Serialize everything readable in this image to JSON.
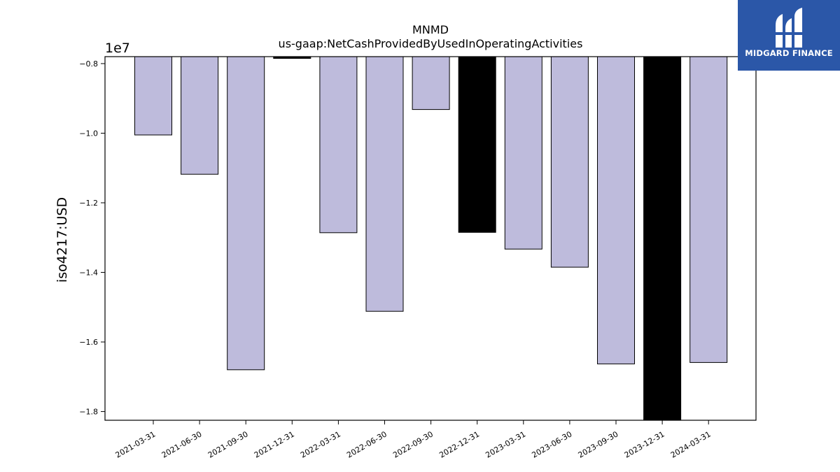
{
  "brand": {
    "name": "MIDGARD FINANCE",
    "icon": "midgard-logo-icon",
    "color": "#2b57a8"
  },
  "chart_data": {
    "type": "bar",
    "title": "MNMD",
    "subtitle": "us-gaap:NetCashProvidedByUsedInOperatingActivities",
    "xlabel": "",
    "ylabel": "iso4217:USD",
    "y_offset_label": "1e7",
    "ylim": [
      -1.825,
      -0.78
    ],
    "yticks": [
      -0.8,
      -1.0,
      -1.2,
      -1.4,
      -1.6,
      -1.8
    ],
    "ytick_labels": [
      "−0.8",
      "−1.0",
      "−1.2",
      "−1.4",
      "−1.6",
      "−1.8"
    ],
    "grid": false,
    "legend": "none",
    "bar_color": "#bebbdc",
    "highlight_color": "#000000",
    "categories": [
      "2021-03-31",
      "2021-06-30",
      "2021-09-30",
      "2021-12-31",
      "2022-03-31",
      "2022-06-30",
      "2022-09-30",
      "2022-12-31",
      "2023-03-31",
      "2023-06-30",
      "2023-09-30",
      "2023-12-31",
      "2024-03-31"
    ],
    "values": [
      -1.005,
      -1.118,
      -1.68,
      -0.785,
      -1.286,
      -1.512,
      -0.932,
      -1.285,
      -1.333,
      -1.385,
      -1.663,
      -1.825,
      -1.659
    ],
    "highlighted": [
      false,
      false,
      false,
      true,
      false,
      false,
      false,
      true,
      false,
      false,
      false,
      true,
      false
    ]
  }
}
